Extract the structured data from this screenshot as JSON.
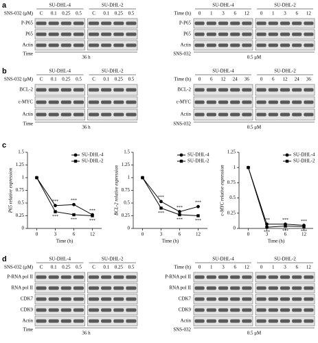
{
  "blot_panels": [
    {
      "label": "a",
      "left": {
        "groups": [
          "SU-DHL-4",
          "SU-DHL-2"
        ],
        "lane_label": "SNS-032 (μM)",
        "lanes": [
          "C",
          "0.1",
          "0.25",
          "0.5",
          "C",
          "0.1",
          "0.25",
          "0.5"
        ],
        "rows": [
          "P-P65",
          "P65",
          "Actin"
        ],
        "footer_label": "Time",
        "footer_value": "36 h"
      },
      "right": {
        "groups": [
          "SU-DHL-4",
          "SU-DHL-2"
        ],
        "lane_label": "Time (h)",
        "lanes": [
          "0",
          "1",
          "3",
          "6",
          "12",
          "0",
          "1",
          "3",
          "6",
          "12"
        ],
        "rows": [
          "P-P65",
          "P65",
          "Actin"
        ],
        "footer_label": "SNS-032",
        "footer_value": "0.5 μM"
      }
    },
    {
      "label": "b",
      "left": {
        "groups": [
          "SU-DHL-4",
          "SU-DHL-2"
        ],
        "lane_label": "SNS-032 (μM)",
        "lanes": [
          "C",
          "0.1",
          "0.25",
          "0.5",
          "C",
          "0.1",
          "0.25",
          "0.5"
        ],
        "rows": [
          "BCL-2",
          "c-MYC",
          "Actin"
        ],
        "footer_label": "Time",
        "footer_value": "36 h"
      },
      "right": {
        "groups": [
          "SU-DHL-4",
          "SU-DHL-2"
        ],
        "lane_label": "Time (h)",
        "lanes": [
          "0",
          "6",
          "12",
          "24",
          "36",
          "0",
          "6",
          "12",
          "24",
          "36"
        ],
        "rows": [
          "BCL-2",
          "c-MYC",
          "Actin"
        ],
        "footer_label": "SNS-032",
        "footer_value": "0.5 μM"
      }
    },
    {
      "label": "d",
      "left": {
        "groups": [
          "SU-DHL-4",
          "SU-DHL-2"
        ],
        "lane_label": "SNS-032 (μM)",
        "lanes": [
          "C",
          "0.1",
          "0.25",
          "0.5",
          "C",
          "0.1",
          "0.25",
          "0.5"
        ],
        "rows": [
          "P-RNA pol II",
          "RNA pol II",
          "CDK7",
          "CDK9",
          "Actin"
        ],
        "footer_label": "Time",
        "footer_value": "36 h"
      },
      "right": {
        "groups": [
          "SU-DHL-4",
          "SU-DHL-2"
        ],
        "lane_label": "Time (h)",
        "lanes": [
          "0",
          "1",
          "3",
          "6",
          "12",
          "0",
          "1",
          "3",
          "6",
          "12"
        ],
        "rows": [
          "P-RNA pol II",
          "RNA pol II",
          "CDK7",
          "CDK9",
          "Actin"
        ],
        "footer_label": "SNS-032",
        "footer_value": "0.5 μM"
      }
    }
  ],
  "chart_panel_label": "c",
  "chart_data": [
    {
      "type": "line",
      "y_label": "P65 relative expression",
      "x_label": "Time (h)",
      "categories": [
        "0",
        "3",
        "6",
        "12"
      ],
      "ylim": [
        0,
        1.5
      ],
      "yticks": [
        0,
        0.25,
        0.5,
        0.75,
        1,
        1.25,
        1.5
      ],
      "series": [
        {
          "name": "SU-DHL-4",
          "color": "#000000",
          "marker": "circle",
          "values": [
            1.0,
            0.45,
            0.47,
            0.27
          ],
          "significance": [
            null,
            "***",
            "***",
            "***"
          ]
        },
        {
          "name": "SU-DHL-2",
          "color": "#000000",
          "marker": "square",
          "values": [
            1.0,
            0.33,
            0.27,
            0.25
          ],
          "significance": [
            null,
            "***",
            "***",
            "***"
          ]
        }
      ]
    },
    {
      "type": "line",
      "y_label": "BCL-2 relative expression",
      "x_label": "Time (h)",
      "categories": [
        "0",
        "3",
        "6",
        "12"
      ],
      "ylim": [
        0,
        1.5
      ],
      "yticks": [
        0,
        0.25,
        0.5,
        0.75,
        1,
        1.25,
        1.5
      ],
      "series": [
        {
          "name": "SU-DHL-4",
          "color": "#000000",
          "marker": "circle",
          "values": [
            1.0,
            0.53,
            0.33,
            0.43
          ],
          "significance": [
            null,
            "***",
            "***",
            "***"
          ]
        },
        {
          "name": "SU-DHL-2",
          "color": "#000000",
          "marker": "square",
          "values": [
            1.0,
            0.4,
            0.27,
            0.25
          ],
          "significance": [
            null,
            "***",
            "***",
            "***"
          ]
        }
      ]
    },
    {
      "type": "line",
      "y_label": "c-MYC relative expression",
      "x_label": "Time (h)",
      "categories": [
        "0",
        "3",
        "6",
        "12"
      ],
      "ylim": [
        0,
        1.25
      ],
      "yticks": [
        0,
        0.25,
        0.5,
        0.75,
        1,
        1.25
      ],
      "series": [
        {
          "name": "SU-DHL-4",
          "color": "#000000",
          "marker": "circle",
          "values": [
            1.0,
            0.07,
            0.07,
            0.05
          ],
          "significance": [
            null,
            "***",
            "***",
            "***"
          ]
        },
        {
          "name": "SU-DHL-2",
          "color": "#000000",
          "marker": "square",
          "values": [
            1.0,
            0.02,
            0.04,
            0.03
          ],
          "significance": [
            null,
            "***",
            "***",
            "***"
          ]
        }
      ]
    }
  ]
}
